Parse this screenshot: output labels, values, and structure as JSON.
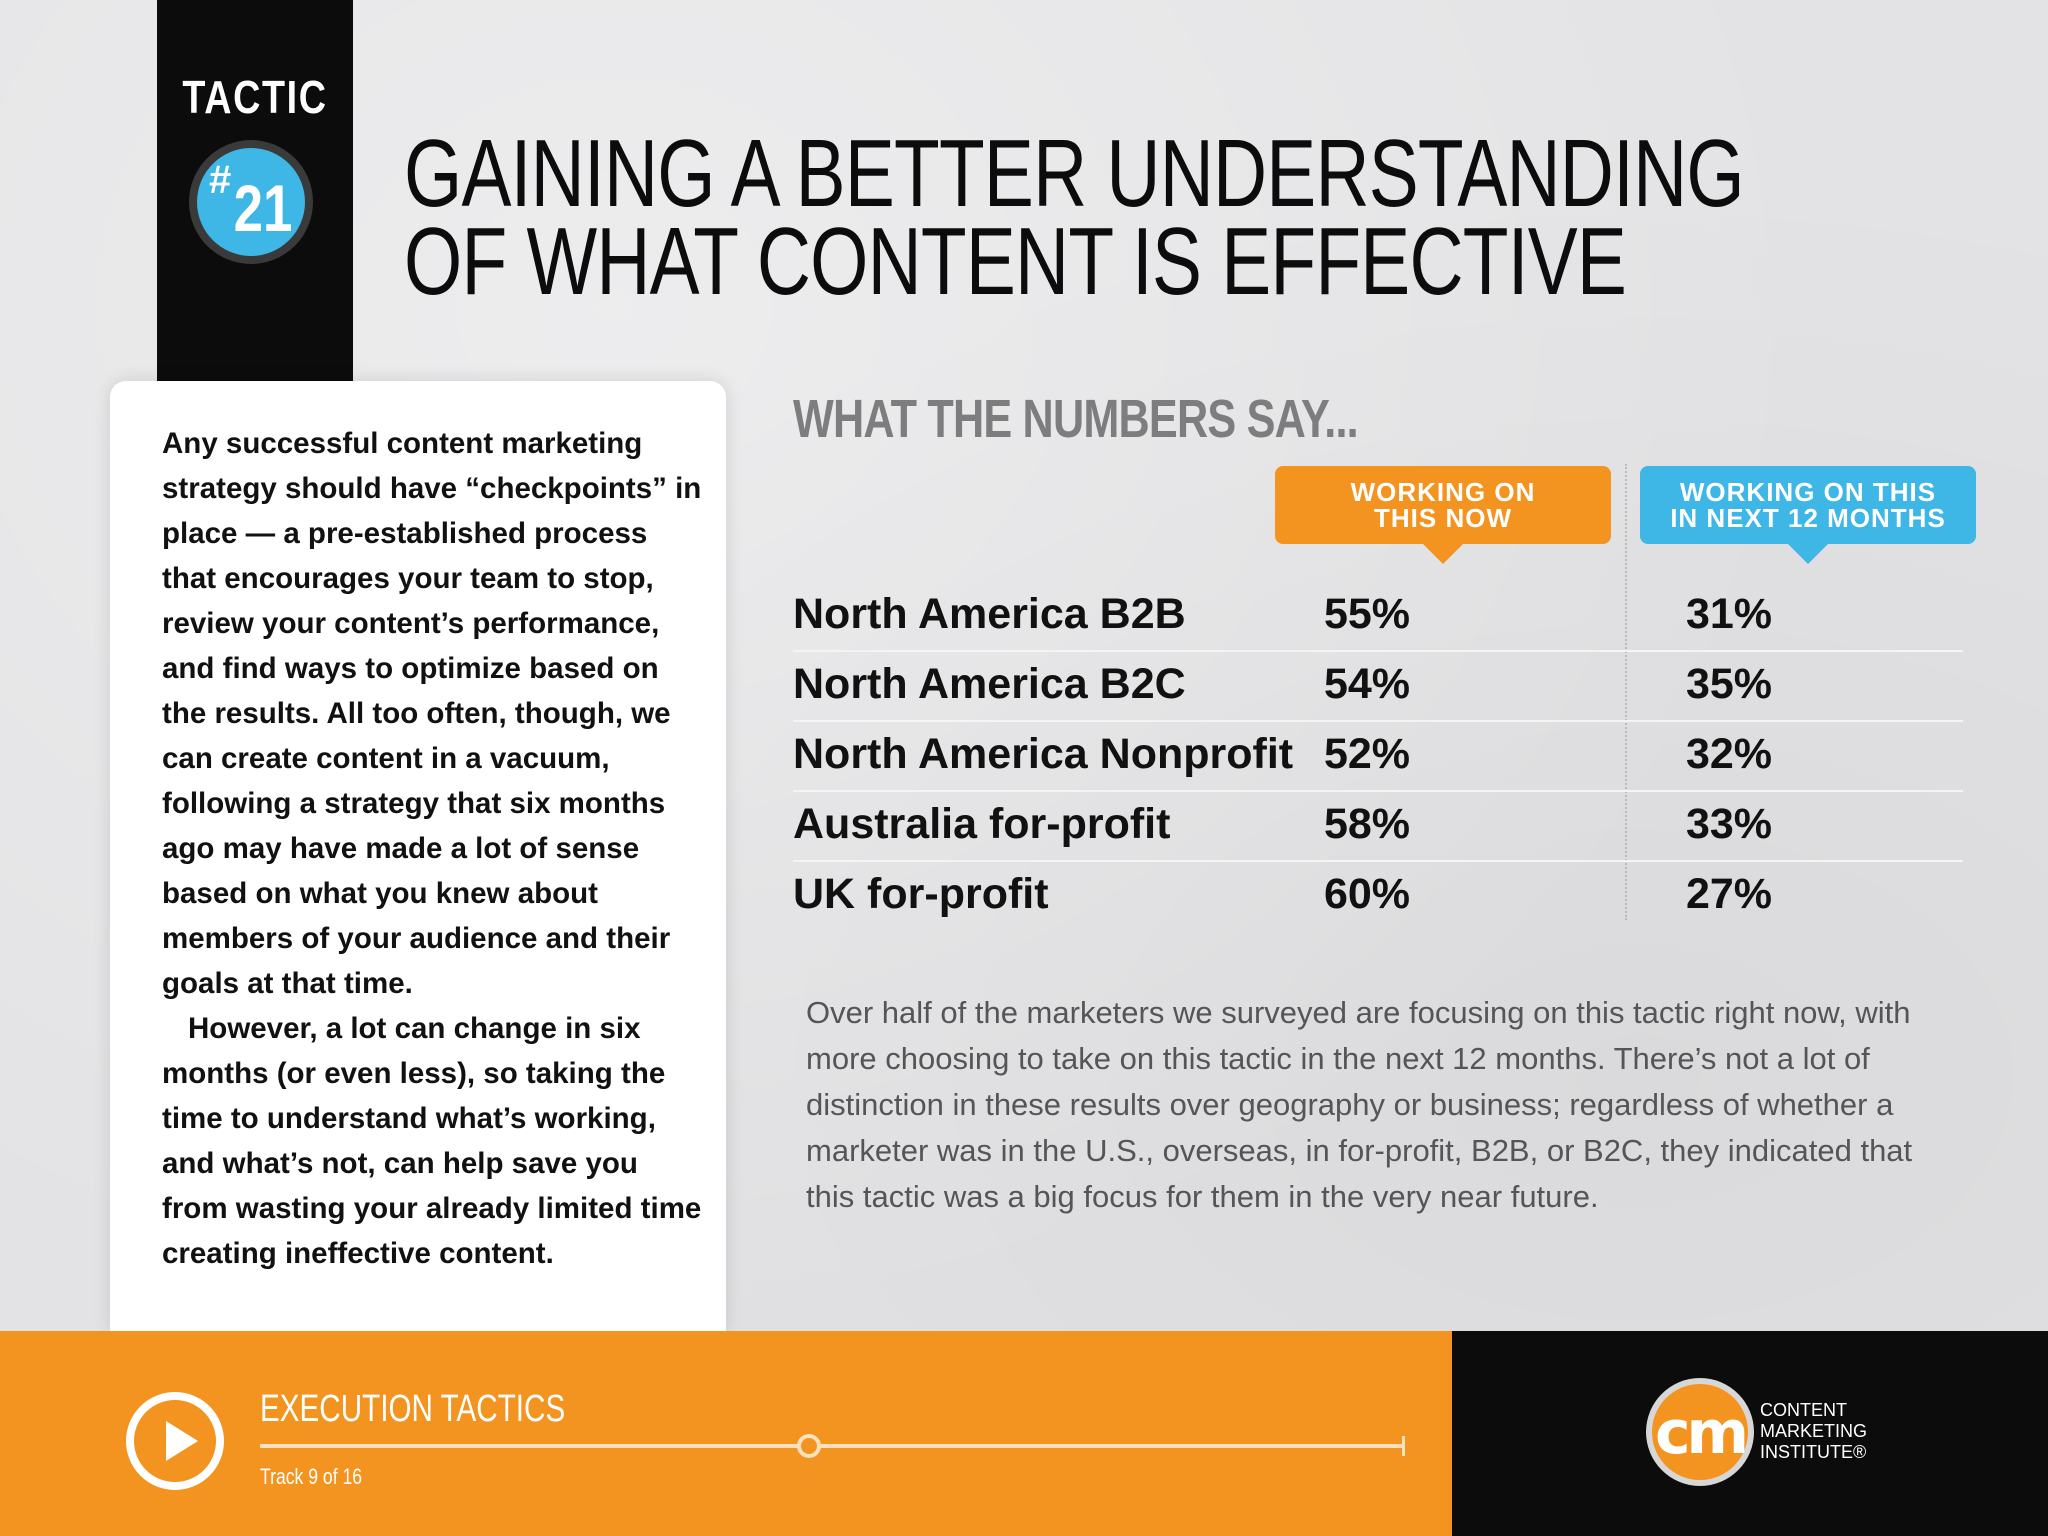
{
  "tactic": {
    "label": "TACTIC",
    "hash": "#",
    "number": "21"
  },
  "title": {
    "line1": "GAINING A BETTER UNDERSTANDING",
    "line2": "OF WHAT CONTENT IS EFFECTIVE"
  },
  "card": {
    "paragraph1": "Any successful content marketing strategy should have “checkpoints” in place — a pre-established process that encourages your team to stop, review your content’s performance, and find ways to optimize based on the results. All too often, though, we can create content in a vacuum, following a strategy that six months ago may have made a lot of sense based on what you knew about members of your audience and their goals at that time.",
    "paragraph2": "However, a lot can change in six months (or even less), so taking the time to understand what’s working, and what’s not, can help save you from wasting your already limited time creating ineffective content."
  },
  "numbers": {
    "heading": "WHAT THE NUMBERS SAY...",
    "col_now_line1": "WORKING ON",
    "col_now_line2": "THIS NOW",
    "col_next_line1": "WORKING ON THIS",
    "col_next_line2": "IN NEXT 12 MONTHS",
    "rows": [
      {
        "label": "North America B2B",
        "now": "55%",
        "next": "31%"
      },
      {
        "label": "North America B2C",
        "now": "54%",
        "next": "35%"
      },
      {
        "label": "North America Nonprofit",
        "now": "52%",
        "next": "32%"
      },
      {
        "label": "Australia for-profit",
        "now": "58%",
        "next": "33%"
      },
      {
        "label": "UK for-profit",
        "now": "60%",
        "next": "27%"
      }
    ],
    "summary": "Over half of the marketers we surveyed are focusing on this tactic right now, with more choosing to take on this tactic in the next 12 months. There’s not a lot of distinction in these results over geography or business; regardless of whether a marketer was in the U.S., overseas, in for-profit, B2B, or B2C, they indicated that this tactic was a big focus for them in the very near future."
  },
  "footer": {
    "section": "EXECUTION TACTICS",
    "track": "Track 9 of 16",
    "progress": 0.48,
    "logo_mark": "cm",
    "org_line1": "CONTENT",
    "org_line2": "MARKETING",
    "org_line3": "INSTITUTE®"
  },
  "colors": {
    "orange": "#f39420",
    "blue": "#3eb6e6",
    "black": "#0c0c0c"
  }
}
